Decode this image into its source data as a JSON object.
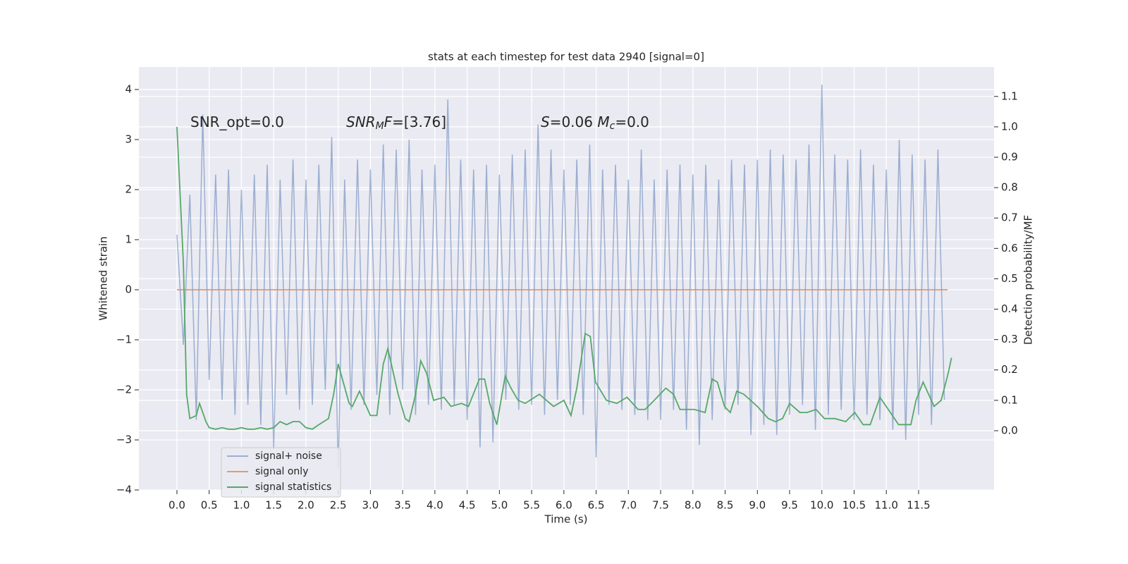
{
  "chart_data": {
    "type": "line",
    "title": "stats at each timestep for test data 2940 [signal=0]",
    "x_label": "Time (s)",
    "y_label": "Whitened strain",
    "y2_label": "Detection probability/MF",
    "annotations": [
      [
        {
          "text": "SNR_opt=0.0",
          "style": "normal"
        }
      ],
      [
        {
          "text": "SNR",
          "style": "italic"
        },
        {
          "text": "M",
          "style": "italic-sub"
        },
        {
          "text": "F",
          "style": "italic"
        },
        {
          "text": "=[3.76]",
          "style": "normal"
        }
      ],
      [
        {
          "text": "S",
          "style": "italic"
        },
        {
          "text": "=0.06   ",
          "style": "normal"
        },
        {
          "text": "M",
          "style": "italic"
        },
        {
          "text": "c",
          "style": "italic-sub"
        },
        {
          "text": "=0.0",
          "style": "normal"
        }
      ]
    ],
    "xlim": [
      -0.59,
      12.67
    ],
    "ylim": [
      -4,
      4.45
    ],
    "y2lim": [
      -0.195,
      1.197
    ],
    "xticks": [
      {
        "value": 0,
        "label": "0.0"
      },
      0.5,
      {
        "value": 1,
        "label": "1.0"
      },
      1.5,
      {
        "value": 2,
        "label": "2.0"
      },
      2.5,
      {
        "value": 3,
        "label": "3.0"
      },
      3.5,
      {
        "value": 4,
        "label": "4.0"
      },
      4.5,
      {
        "value": 5,
        "label": "5.0"
      },
      5.5,
      {
        "value": 6,
        "label": "6.0"
      },
      6.5,
      {
        "value": 7,
        "label": "7.0"
      },
      7.5,
      {
        "value": 8,
        "label": "8.0"
      },
      8.5,
      {
        "value": 9,
        "label": "9.0"
      },
      9.5,
      {
        "value": 10,
        "label": "10.0"
      },
      10.5,
      {
        "value": 11,
        "label": "11.0"
      },
      11.5
    ],
    "yticks": [
      {
        "value": -4,
        "label": "−4"
      },
      {
        "value": -3,
        "label": "−3"
      },
      {
        "value": -2,
        "label": "−2"
      },
      {
        "value": -1,
        "label": "−1"
      },
      0,
      1,
      2,
      3,
      4
    ],
    "y2ticks": [
      {
        "value": 0,
        "label": "0.0"
      },
      0.1,
      0.2,
      0.3,
      0.4,
      0.5,
      0.6,
      0.7,
      0.8,
      0.9,
      {
        "value": 1,
        "label": "1.0"
      },
      1.1
    ],
    "grid": true,
    "legend": "lower left",
    "series": [
      {
        "name": "signal+ noise",
        "color": "#4c72b0",
        "opacity": 0.5,
        "axis": "y",
        "x": [
          0.0,
          0.1,
          0.2,
          0.3,
          0.4,
          0.5,
          0.6,
          0.7,
          0.8,
          0.9,
          1.0,
          1.1,
          1.2,
          1.3,
          1.4,
          1.5,
          1.6,
          1.7,
          1.8,
          1.9,
          2.0,
          2.1,
          2.2,
          2.3,
          2.4,
          2.5,
          2.6,
          2.7,
          2.8,
          2.9,
          3.0,
          3.1,
          3.2,
          3.3,
          3.4,
          3.5,
          3.6,
          3.7,
          3.8,
          3.9,
          4.0,
          4.1,
          4.2,
          4.3,
          4.4,
          4.5,
          4.6,
          4.7,
          4.8,
          4.9,
          5.0,
          5.1,
          5.2,
          5.3,
          5.4,
          5.5,
          5.6,
          5.7,
          5.8,
          5.9,
          6.0,
          6.1,
          6.2,
          6.3,
          6.4,
          6.5,
          6.6,
          6.7,
          6.8,
          6.9,
          7.0,
          7.1,
          7.2,
          7.3,
          7.4,
          7.5,
          7.6,
          7.7,
          7.8,
          7.9,
          8.0,
          8.1,
          8.2,
          8.3,
          8.4,
          8.5,
          8.6,
          8.7,
          8.8,
          8.9,
          9.0,
          9.1,
          9.2,
          9.3,
          9.4,
          9.5,
          9.6,
          9.7,
          9.8,
          9.9,
          10.0,
          10.1,
          10.2,
          10.3,
          10.4,
          10.5,
          10.6,
          10.7,
          10.8,
          10.9,
          11.0,
          11.1,
          11.2,
          11.3,
          11.4,
          11.5,
          11.6,
          11.7,
          11.8,
          11.9
        ],
        "values": [
          1.1,
          -1.1,
          1.9,
          -2.6,
          3.5,
          -1.8,
          2.3,
          -2.2,
          2.4,
          -2.5,
          2.0,
          -2.3,
          2.3,
          -2.7,
          2.5,
          -3.2,
          2.2,
          -2.1,
          2.6,
          -2.4,
          2.2,
          -2.3,
          2.5,
          -2.0,
          3.05,
          -3.6,
          2.2,
          -2.4,
          2.6,
          -2.3,
          2.4,
          -2.1,
          2.9,
          -2.5,
          2.8,
          -2.0,
          3.0,
          -2.5,
          2.4,
          -2.3,
          2.5,
          -2.4,
          3.8,
          -2.3,
          2.6,
          -2.6,
          2.4,
          -3.15,
          2.5,
          -3.05,
          2.3,
          -2.2,
          2.7,
          -2.4,
          2.8,
          -2.3,
          3.3,
          -2.5,
          2.8,
          -2.2,
          2.4,
          -2.3,
          2.6,
          -2.5,
          2.9,
          -3.35,
          2.4,
          -2.3,
          2.5,
          -2.4,
          2.2,
          -2.5,
          2.8,
          -2.6,
          2.2,
          -2.6,
          2.4,
          -2.4,
          2.5,
          -2.8,
          2.3,
          -3.1,
          2.5,
          -2.6,
          2.2,
          -2.4,
          2.6,
          -2.3,
          2.5,
          -2.9,
          2.6,
          -2.7,
          2.8,
          -2.9,
          2.7,
          -2.5,
          2.6,
          -2.3,
          2.9,
          -2.8,
          4.1,
          -2.5,
          2.7,
          -2.4,
          2.6,
          -2.6,
          2.8,
          -2.5,
          2.5,
          -2.6,
          2.4,
          -2.8,
          3.0,
          -3.0,
          2.7,
          -2.5,
          2.6,
          -2.7,
          2.8,
          -2.2
        ]
      },
      {
        "name": "signal only",
        "color": "#dd8452",
        "opacity": 0.8,
        "axis": "y",
        "x": [
          0.0,
          11.95
        ],
        "values": [
          0,
          0
        ]
      },
      {
        "name": "signal statistics",
        "color": "#55a868",
        "opacity": 1,
        "axis": "y2",
        "x": [
          0.0,
          0.1,
          0.15,
          0.2,
          0.3,
          0.35,
          0.45,
          0.5,
          0.6,
          0.7,
          0.8,
          0.9,
          1.0,
          1.1,
          1.2,
          1.3,
          1.4,
          1.5,
          1.6,
          1.7,
          1.8,
          1.9,
          2.0,
          2.1,
          2.2,
          2.35,
          2.43,
          2.5,
          2.67,
          2.72,
          2.83,
          3.0,
          3.1,
          3.2,
          3.27,
          3.43,
          3.54,
          3.6,
          3.7,
          3.78,
          3.87,
          3.98,
          4.14,
          4.25,
          4.41,
          4.52,
          4.69,
          4.77,
          4.85,
          4.96,
          5.09,
          5.18,
          5.29,
          5.4,
          5.62,
          5.84,
          6.0,
          6.11,
          6.2,
          6.33,
          6.41,
          6.49,
          6.66,
          6.82,
          6.98,
          7.15,
          7.26,
          7.4,
          7.58,
          7.7,
          7.8,
          8.02,
          8.19,
          8.3,
          8.38,
          8.49,
          8.58,
          8.68,
          8.79,
          9.0,
          9.17,
          9.28,
          9.39,
          9.5,
          9.66,
          9.77,
          9.91,
          10.04,
          10.2,
          10.37,
          10.51,
          10.64,
          10.75,
          10.9,
          11.03,
          11.19,
          11.38,
          11.46,
          11.57,
          11.74,
          11.85,
          11.96,
          12.01
        ],
        "values": [
          1.0,
          0.55,
          0.12,
          0.04,
          0.05,
          0.09,
          0.03,
          0.01,
          0.005,
          0.01,
          0.005,
          0.005,
          0.01,
          0.005,
          0.005,
          0.01,
          0.005,
          0.01,
          0.03,
          0.02,
          0.03,
          0.03,
          0.01,
          0.005,
          0.02,
          0.04,
          0.12,
          0.22,
          0.09,
          0.08,
          0.13,
          0.05,
          0.05,
          0.22,
          0.27,
          0.12,
          0.04,
          0.03,
          0.12,
          0.23,
          0.19,
          0.1,
          0.11,
          0.08,
          0.09,
          0.08,
          0.17,
          0.17,
          0.09,
          0.02,
          0.18,
          0.14,
          0.1,
          0.09,
          0.12,
          0.08,
          0.1,
          0.05,
          0.14,
          0.32,
          0.31,
          0.16,
          0.1,
          0.09,
          0.11,
          0.07,
          0.07,
          0.1,
          0.14,
          0.12,
          0.07,
          0.07,
          0.06,
          0.17,
          0.16,
          0.08,
          0.06,
          0.13,
          0.12,
          0.08,
          0.04,
          0.03,
          0.04,
          0.09,
          0.06,
          0.06,
          0.07,
          0.04,
          0.04,
          0.03,
          0.06,
          0.02,
          0.02,
          0.11,
          0.07,
          0.02,
          0.02,
          0.1,
          0.16,
          0.08,
          0.1,
          0.19,
          0.24
        ]
      }
    ]
  }
}
